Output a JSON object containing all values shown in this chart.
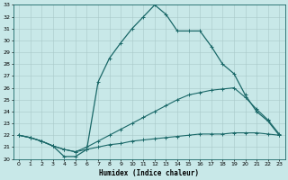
{
  "xlabel": "Humidex (Indice chaleur)",
  "bg_color": "#c8e8e8",
  "grid_color": "#a8c8c8",
  "line_color": "#1a6868",
  "xlim": [
    -0.5,
    23.5
  ],
  "ylim": [
    20,
    33
  ],
  "xticks": [
    0,
    1,
    2,
    3,
    4,
    5,
    6,
    7,
    8,
    9,
    10,
    11,
    12,
    13,
    14,
    15,
    16,
    17,
    18,
    19,
    20,
    21,
    22,
    23
  ],
  "yticks": [
    20,
    21,
    22,
    23,
    24,
    25,
    26,
    27,
    28,
    29,
    30,
    31,
    32,
    33
  ],
  "series": [
    {
      "x": [
        0,
        1,
        2,
        3,
        4,
        5,
        6,
        7,
        8,
        9,
        10,
        11,
        12,
        13,
        14,
        15,
        16,
        17,
        18,
        19,
        20,
        21,
        22,
        23
      ],
      "y": [
        22.0,
        21.8,
        21.5,
        21.1,
        20.8,
        20.6,
        20.8,
        21.0,
        21.2,
        21.3,
        21.5,
        21.6,
        21.7,
        21.8,
        21.9,
        22.0,
        22.1,
        22.1,
        22.1,
        22.2,
        22.2,
        22.2,
        22.1,
        22.0
      ],
      "marker": "+",
      "markersize": 2.5,
      "linewidth": 0.8
    },
    {
      "x": [
        0,
        1,
        2,
        3,
        4,
        5,
        6,
        7,
        8,
        9,
        10,
        11,
        12,
        13,
        14,
        15,
        16,
        17,
        18,
        19,
        20,
        21,
        22,
        23
      ],
      "y": [
        22.0,
        21.8,
        21.5,
        21.1,
        20.8,
        20.6,
        21.0,
        21.5,
        22.0,
        22.5,
        23.0,
        23.5,
        24.0,
        24.5,
        25.0,
        25.4,
        25.6,
        25.8,
        25.9,
        26.0,
        25.2,
        24.2,
        23.3,
        22.1
      ],
      "marker": "+",
      "markersize": 2.5,
      "linewidth": 0.8
    },
    {
      "x": [
        0,
        1,
        2,
        3,
        4,
        5,
        6,
        7,
        8,
        9,
        10,
        11,
        12,
        13,
        14,
        15,
        16,
        17,
        18,
        19,
        20,
        21,
        22,
        23
      ],
      "y": [
        22.0,
        21.8,
        21.5,
        21.1,
        20.2,
        20.2,
        20.8,
        26.5,
        28.5,
        29.8,
        31.0,
        32.0,
        33.0,
        32.2,
        30.8,
        30.8,
        30.8,
        29.5,
        28.0,
        27.2,
        25.4,
        24.0,
        23.2,
        22.0
      ],
      "marker": "+",
      "markersize": 3,
      "linewidth": 0.9
    }
  ]
}
